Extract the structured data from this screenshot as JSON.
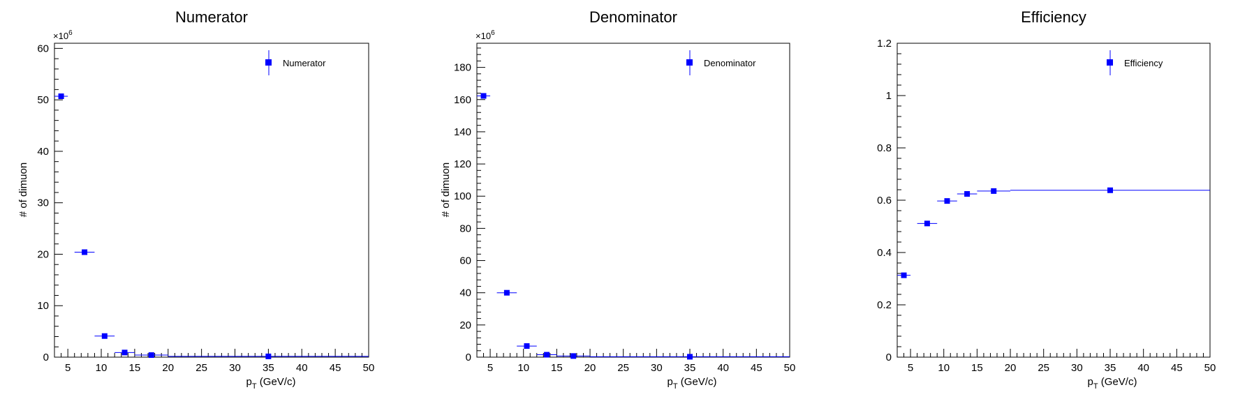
{
  "chart_data": [
    {
      "type": "scatter",
      "title": "Numerator",
      "xlabel": "p_T (GeV/c)",
      "ylabel": "# of dimuon",
      "y_exponent_label": "×10^6",
      "xlim": [
        3,
        50
      ],
      "ylim": [
        0,
        61
      ],
      "x_ticks": [
        5,
        10,
        15,
        20,
        25,
        30,
        35,
        40,
        45,
        50
      ],
      "y_ticks": [
        0,
        10,
        20,
        30,
        40,
        50,
        60
      ],
      "grid": false,
      "legend_position": "top-right",
      "color": "#0000ff",
      "series": [
        {
          "name": "Numerator",
          "x": [
            4,
            7.5,
            10.5,
            13.5,
            17.5,
            35
          ],
          "x_lo": [
            3,
            6,
            9,
            12,
            15,
            20
          ],
          "x_hi": [
            5,
            9,
            12,
            15,
            20,
            50
          ],
          "y": [
            50.7,
            20.4,
            4.1,
            0.9,
            0.4,
            0.15
          ]
        }
      ]
    },
    {
      "type": "scatter",
      "title": "Denominator",
      "xlabel": "p_T (GeV/c)",
      "ylabel": "# of dimuon",
      "y_exponent_label": "×10^6",
      "xlim": [
        3,
        50
      ],
      "ylim": [
        0,
        195
      ],
      "x_ticks": [
        5,
        10,
        15,
        20,
        25,
        30,
        35,
        40,
        45,
        50
      ],
      "y_ticks": [
        0,
        20,
        40,
        60,
        80,
        100,
        120,
        140,
        160,
        180
      ],
      "grid": false,
      "legend_position": "top-right",
      "color": "#0000ff",
      "series": [
        {
          "name": "Denominator",
          "x": [
            4,
            7.5,
            10.5,
            13.5,
            17.5,
            35
          ],
          "x_lo": [
            3,
            6,
            9,
            12,
            15,
            20
          ],
          "x_hi": [
            5,
            9,
            12,
            15,
            20,
            50
          ],
          "y": [
            162.3,
            40.0,
            6.9,
            1.5,
            0.7,
            0.25
          ]
        }
      ]
    },
    {
      "type": "scatter",
      "title": "Efficiency",
      "xlabel": "p_T (GeV/c)",
      "ylabel": "",
      "y_exponent_label": "",
      "xlim": [
        3,
        50
      ],
      "ylim": [
        0,
        1.2
      ],
      "x_ticks": [
        5,
        10,
        15,
        20,
        25,
        30,
        35,
        40,
        45,
        50
      ],
      "y_ticks": [
        0,
        0.2,
        0.4,
        0.6,
        0.8,
        1,
        1.2
      ],
      "grid": false,
      "legend_position": "top-right",
      "color": "#0000ff",
      "series": [
        {
          "name": "Efficiency",
          "x": [
            4,
            7.5,
            10.5,
            13.5,
            17.5,
            35
          ],
          "x_lo": [
            3,
            6,
            9,
            12,
            15,
            20
          ],
          "x_hi": [
            5,
            9,
            12,
            15,
            20,
            50
          ],
          "y": [
            0.313,
            0.511,
            0.597,
            0.624,
            0.635,
            0.638
          ]
        }
      ]
    }
  ]
}
